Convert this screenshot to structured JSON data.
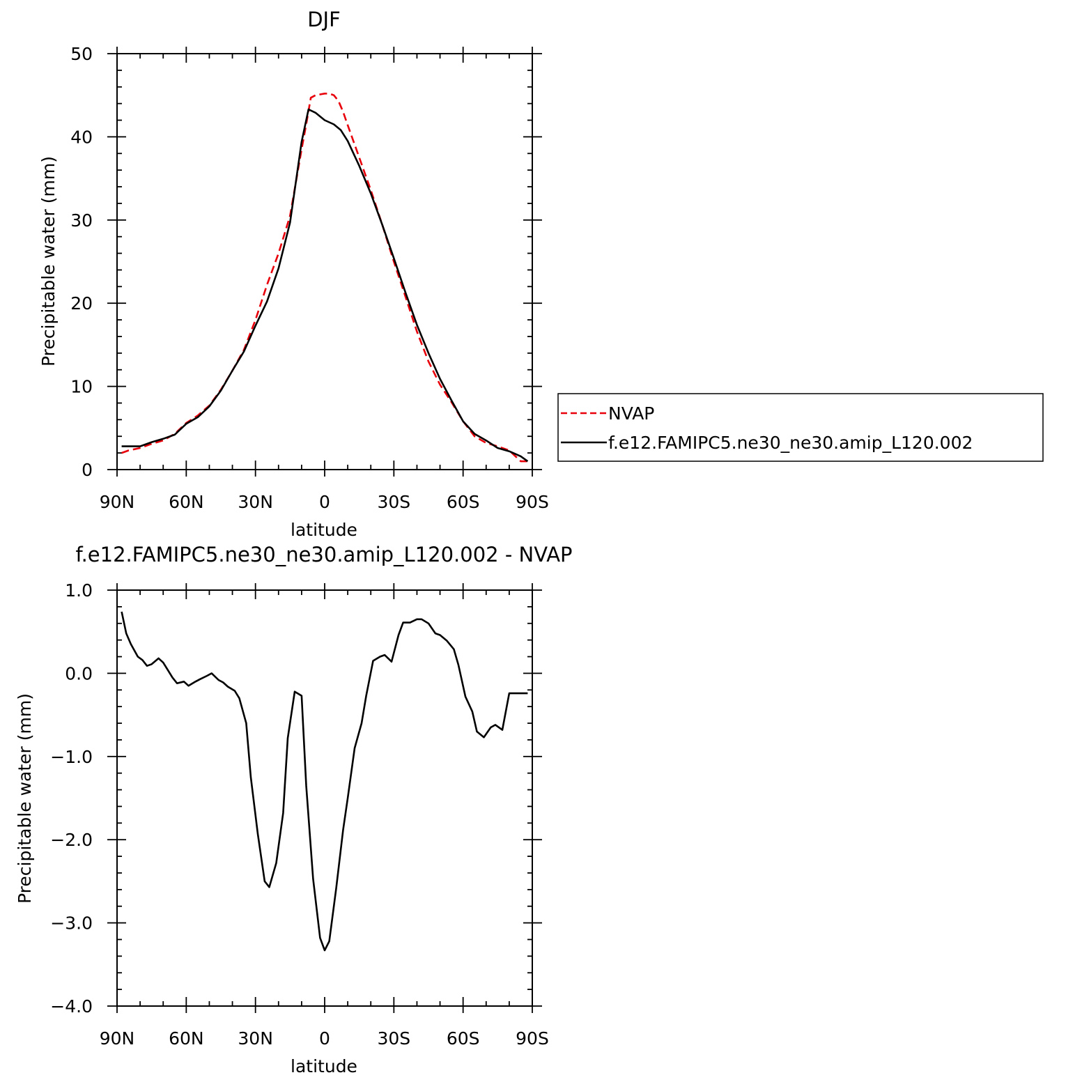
{
  "chart_data": [
    {
      "type": "line",
      "title": "DJF",
      "xlabel": "latitude",
      "ylabel": "Precipitable water (mm)",
      "xlim": [
        90,
        -90
      ],
      "ylim": [
        0,
        50
      ],
      "x_ticks": [
        {
          "value": 90,
          "label": "90N"
        },
        {
          "value": 60,
          "label": "60N"
        },
        {
          "value": 30,
          "label": "30N"
        },
        {
          "value": 0,
          "label": "0"
        },
        {
          "value": -30,
          "label": "30S"
        },
        {
          "value": -60,
          "label": "60S"
        },
        {
          "value": -90,
          "label": "90S"
        }
      ],
      "y_ticks": [
        {
          "value": 0,
          "label": "0"
        },
        {
          "value": 10,
          "label": "10"
        },
        {
          "value": 20,
          "label": "20"
        },
        {
          "value": 30,
          "label": "30"
        },
        {
          "value": 40,
          "label": "40"
        },
        {
          "value": 50,
          "label": "50"
        }
      ],
      "legend": {
        "placement": "right"
      },
      "series": [
        {
          "name": "NVAP",
          "color": "#e8000b",
          "dash": true,
          "x": [
            88,
            85,
            80,
            75,
            70,
            65,
            60,
            55,
            50,
            45,
            40,
            35,
            30,
            25,
            20,
            15,
            10,
            8,
            6,
            4,
            2,
            0,
            -2,
            -4,
            -6,
            -8,
            -10,
            -15,
            -20,
            -25,
            -30,
            -35,
            -40,
            -45,
            -50,
            -55,
            -60,
            -65,
            -70,
            -75,
            -80,
            -85,
            -88
          ],
          "y": [
            2.0,
            2.3,
            2.6,
            3.1,
            3.5,
            4.3,
            5.6,
            6.5,
            7.7,
            9.6,
            11.9,
            14.4,
            18.0,
            22.2,
            26.0,
            30.5,
            38.5,
            41.5,
            44.7,
            45.0,
            45.1,
            45.2,
            45.2,
            45.0,
            44.3,
            43.0,
            41.4,
            37.5,
            33.6,
            29.4,
            25.0,
            20.8,
            16.6,
            13.0,
            10.2,
            8.1,
            5.8,
            4.0,
            3.2,
            2.8,
            2.3,
            1.0,
            1.0
          ]
        },
        {
          "name": "f.e12.FAMIPC5.ne30_ne30.amip_L120.002",
          "color": "#000000",
          "dash": false,
          "x": [
            88,
            85,
            80,
            75,
            70,
            65,
            60,
            55,
            50,
            45,
            40,
            35,
            30,
            25,
            20,
            15,
            10,
            7,
            4,
            0,
            -4,
            -7,
            -10,
            -15,
            -20,
            -25,
            -30,
            -35,
            -40,
            -45,
            -50,
            -55,
            -60,
            -65,
            -70,
            -75,
            -80,
            -85,
            -88
          ],
          "y": [
            2.8,
            2.8,
            2.8,
            3.3,
            3.7,
            4.2,
            5.5,
            6.3,
            7.6,
            9.5,
            11.9,
            14.2,
            17.3,
            20.2,
            24.2,
            29.7,
            39.4,
            43.3,
            42.9,
            42.0,
            41.5,
            40.8,
            39.5,
            36.5,
            33.2,
            29.4,
            25.4,
            21.3,
            17.4,
            14.0,
            10.9,
            8.3,
            5.8,
            4.3,
            3.5,
            2.6,
            2.2,
            1.6,
            1.0
          ]
        }
      ]
    },
    {
      "type": "line",
      "title": "f.e12.FAMIPC5.ne30_ne30.amip_L120.002 - NVAP",
      "xlabel": "latitude",
      "ylabel": "Precipitable water (mm)",
      "xlim": [
        90,
        -90
      ],
      "ylim": [
        -4,
        1
      ],
      "x_ticks": [
        {
          "value": 90,
          "label": "90N"
        },
        {
          "value": 60,
          "label": "60N"
        },
        {
          "value": 30,
          "label": "30N"
        },
        {
          "value": 0,
          "label": "0"
        },
        {
          "value": -30,
          "label": "30S"
        },
        {
          "value": -60,
          "label": "60S"
        },
        {
          "value": -90,
          "label": "90S"
        }
      ],
      "y_ticks": [
        {
          "value": 1,
          "label": "1.0"
        },
        {
          "value": 0,
          "label": "0.0"
        },
        {
          "value": -1,
          "label": "−1.0"
        },
        {
          "value": -2,
          "label": "−2.0"
        },
        {
          "value": -3,
          "label": "−3.0"
        },
        {
          "value": -4,
          "label": "−4.0"
        }
      ],
      "series": [
        {
          "color": "#000000",
          "dash": false,
          "x": [
            88,
            86,
            84,
            81,
            79,
            77,
            75,
            72,
            70,
            68,
            66,
            64,
            61,
            59,
            56,
            54,
            51,
            49,
            46,
            44,
            42,
            39,
            37,
            34,
            32,
            29,
            26,
            24,
            21,
            18,
            16,
            13,
            10,
            8,
            5,
            2,
            0,
            -2,
            -5,
            -8,
            -10,
            -13,
            -16,
            -18,
            -21,
            -24,
            -26,
            -29,
            -32,
            -34,
            -37,
            -40,
            -42,
            -45,
            -48,
            -50,
            -53,
            -56,
            -58,
            -61,
            -64,
            -66,
            -69,
            -72,
            -74,
            -77,
            -80,
            -82,
            -85,
            -88
          ],
          "y": [
            0.74,
            0.48,
            0.35,
            0.2,
            0.16,
            0.09,
            0.11,
            0.18,
            0.13,
            0.04,
            -0.05,
            -0.12,
            -0.1,
            -0.15,
            -0.1,
            -0.07,
            -0.03,
            0.0,
            -0.08,
            -0.11,
            -0.16,
            -0.21,
            -0.3,
            -0.6,
            -1.25,
            -1.93,
            -2.5,
            -2.57,
            -2.28,
            -1.68,
            -0.78,
            -0.22,
            -0.27,
            -1.35,
            -2.47,
            -3.18,
            -3.33,
            -3.22,
            -2.58,
            -1.88,
            -1.5,
            -0.9,
            -0.6,
            -0.27,
            0.15,
            0.2,
            0.22,
            0.14,
            0.46,
            0.61,
            0.61,
            0.65,
            0.65,
            0.6,
            0.48,
            0.46,
            0.39,
            0.29,
            0.1,
            -0.28,
            -0.46,
            -0.7,
            -0.77,
            -0.65,
            -0.62,
            -0.68,
            -0.24,
            -0.24,
            -0.24,
            -0.24
          ]
        }
      ]
    }
  ]
}
